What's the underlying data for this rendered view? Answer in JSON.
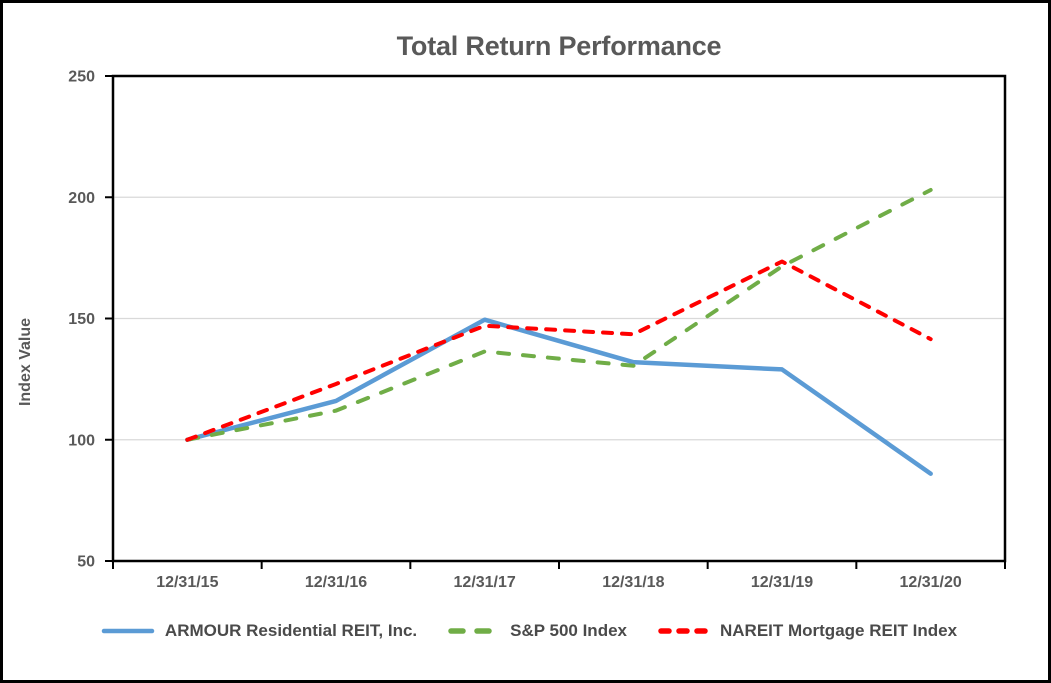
{
  "chart_data": {
    "type": "line",
    "title": "Total Return Performance",
    "ylabel": "Index Value",
    "xlabel": "",
    "x": [
      "12/31/15",
      "12/31/16",
      "12/31/17",
      "12/31/18",
      "12/31/19",
      "12/31/20"
    ],
    "ylim": [
      50,
      250
    ],
    "yticks": [
      50,
      100,
      150,
      200,
      250
    ],
    "grid": "horizontal",
    "legend_position": "bottom",
    "series": [
      {
        "name": "ARMOUR Residential REIT, Inc.",
        "color": "#5B9BD5",
        "style": "solid",
        "values": [
          100,
          116,
          149.5,
          132,
          129,
          86
        ]
      },
      {
        "name": "S&P 500 Index",
        "color": "#70AD47",
        "style": "dashed",
        "values": [
          100,
          112,
          136.4,
          130.5,
          171.5,
          203
        ]
      },
      {
        "name": "NAREIT Mortgage REIT Index",
        "color": "#FF0000",
        "style": "dashed",
        "values": [
          100,
          123,
          147,
          143.5,
          173.5,
          141.5
        ]
      }
    ],
    "colors": {
      "title_text": "#595959",
      "axis_text": "#595959",
      "legend_text": "#4a4a4a",
      "gridline": "#D9D9D9",
      "axis_line": "#000000"
    }
  }
}
